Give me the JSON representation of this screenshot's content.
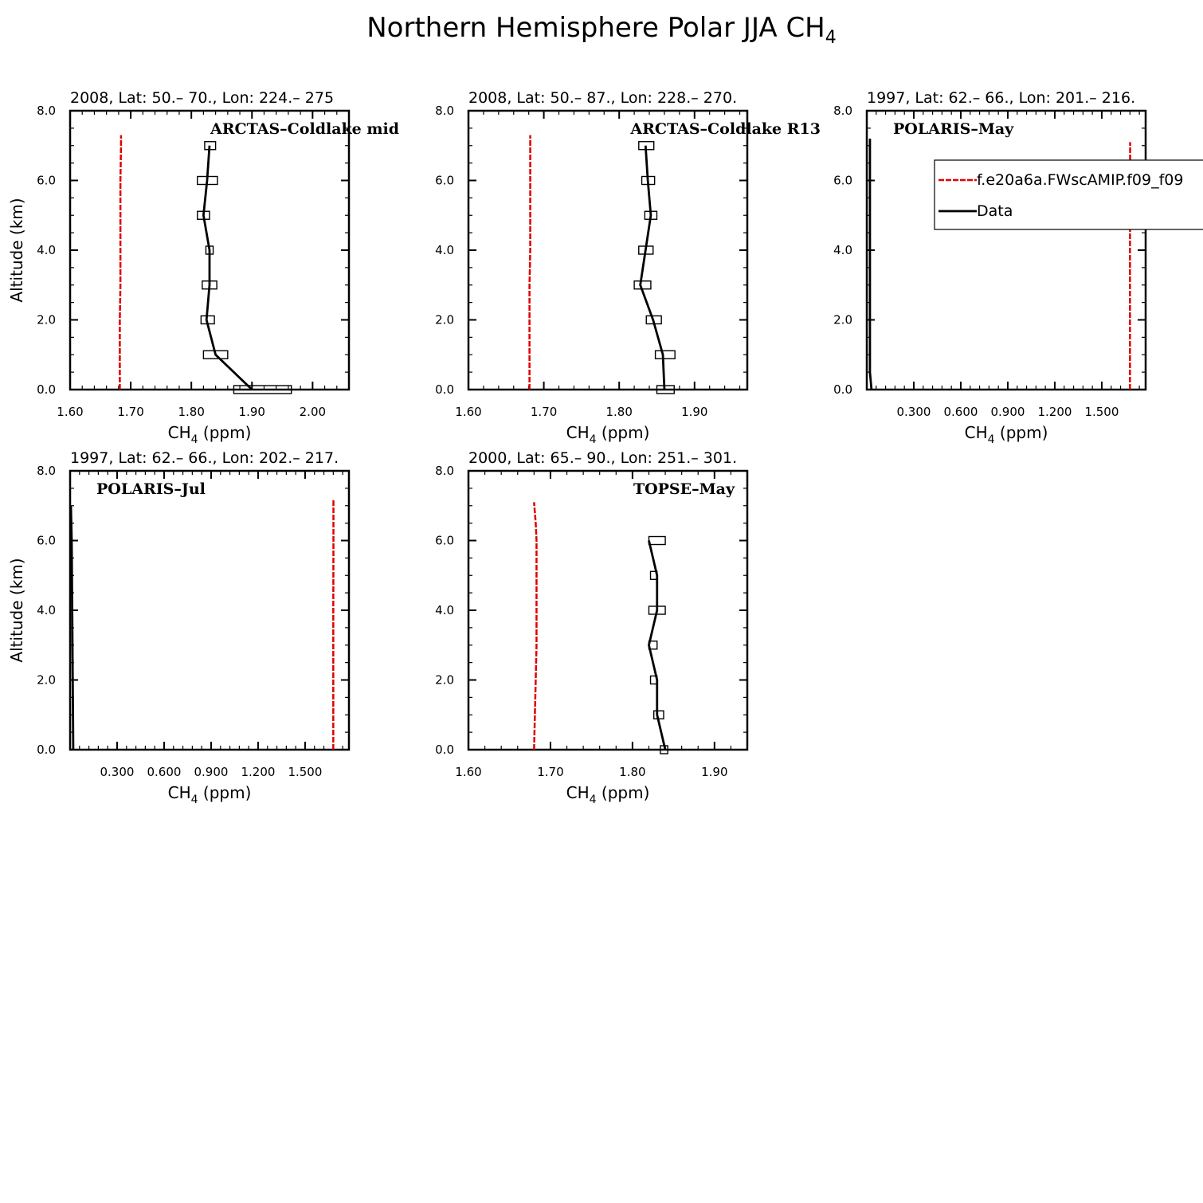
{
  "figure": {
    "title_main": "Northern Hemisphere Polar JJA CH",
    "title_sub": "4"
  },
  "legend": {
    "model_label": "f.e20a6a.FWscAMIP.f09_f09",
    "data_label": "Data",
    "model_color": "#e00000",
    "data_color": "#000000"
  },
  "chart_data": [
    {
      "type": "line",
      "title": "2008, Lat:  50.– 70., Lon: 224.– 275",
      "campaign": "ARCTAS–Coldlake mid",
      "xlabel_main": "CH",
      "xlabel_sub": "4",
      "xlabel_rest": " (ppm)",
      "ylabel": "Altitude (km)",
      "xlim": [
        1.6,
        2.06
      ],
      "ylim": [
        0,
        8
      ],
      "xticks": [
        1.6,
        1.7,
        1.8,
        1.9,
        2.0
      ],
      "xtick_labels": [
        "1.60",
        "1.70",
        "1.80",
        "1.90",
        "2.00"
      ],
      "yticks": [
        0,
        2,
        4,
        6,
        8
      ],
      "ytick_labels": [
        "0.0",
        "2.0",
        "4.0",
        "6.0",
        "8.0"
      ],
      "model": {
        "alt": [
          0,
          1,
          2,
          3,
          4,
          5,
          6,
          7,
          7.3
        ],
        "ch4": [
          1.682,
          1.682,
          1.682,
          1.683,
          1.683,
          1.683,
          1.683,
          1.684,
          1.684
        ]
      },
      "data": {
        "alt": [
          0,
          1,
          2,
          3,
          4,
          5,
          6,
          7
        ],
        "ch4": [
          1.9,
          1.84,
          1.825,
          1.83,
          1.83,
          1.82,
          1.826,
          1.83
        ],
        "lo": [
          1.87,
          1.82,
          1.816,
          1.818,
          1.824,
          1.81,
          1.81,
          1.822
        ],
        "hi": [
          1.965,
          1.86,
          1.838,
          1.842,
          1.836,
          1.83,
          1.843,
          1.84
        ]
      }
    },
    {
      "type": "line",
      "title": "2008, Lat:  50.– 87., Lon: 228.– 270.",
      "campaign": "ARCTAS–Coldlake R13",
      "xlabel_main": "CH",
      "xlabel_sub": "4",
      "xlabel_rest": " (ppm)",
      "ylabel": "",
      "xlim": [
        1.6,
        1.97
      ],
      "ylim": [
        0,
        8
      ],
      "xticks": [
        1.6,
        1.7,
        1.8,
        1.9
      ],
      "xtick_labels": [
        "1.60",
        "1.70",
        "1.80",
        "1.90"
      ],
      "yticks": [
        0,
        2,
        4,
        6,
        8
      ],
      "ytick_labels": [
        "0.0",
        "2.0",
        "4.0",
        "6.0",
        "8.0"
      ],
      "model": {
        "alt": [
          0,
          1,
          2,
          3,
          4,
          5,
          6,
          7,
          7.3
        ],
        "ch4": [
          1.681,
          1.681,
          1.681,
          1.681,
          1.682,
          1.682,
          1.682,
          1.682,
          1.682
        ]
      },
      "data": {
        "alt": [
          0,
          1,
          2,
          3,
          4,
          5,
          6,
          7
        ],
        "ch4": [
          1.86,
          1.858,
          1.845,
          1.828,
          1.835,
          1.842,
          1.838,
          1.835
        ],
        "lo": [
          1.85,
          1.848,
          1.836,
          1.82,
          1.826,
          1.834,
          1.83,
          1.826
        ],
        "hi": [
          1.873,
          1.874,
          1.856,
          1.842,
          1.845,
          1.85,
          1.847,
          1.846
        ]
      }
    },
    {
      "type": "line",
      "title": "1997, Lat: 62.– 66., Lon: 201.– 216.",
      "campaign": "POLARIS–May",
      "xlabel_main": "CH",
      "xlabel_sub": "4",
      "xlabel_rest": " (ppm)",
      "ylabel": "",
      "xlim": [
        0,
        1.78
      ],
      "ylim": [
        0,
        8
      ],
      "xticks": [
        0.3,
        0.6,
        0.9,
        1.2,
        1.5
      ],
      "xtick_labels": [
        "0.300",
        "0.600",
        "0.900",
        "1.200",
        "1.500"
      ],
      "yticks": [
        0,
        2,
        4,
        6,
        8
      ],
      "ytick_labels": [
        "0.0",
        "2.0",
        "4.0",
        "6.0",
        "8.0"
      ],
      "model": {
        "alt": [
          0,
          2,
          4,
          6,
          7.1
        ],
        "ch4": [
          1.68,
          1.68,
          1.68,
          1.681,
          1.681
        ]
      },
      "data": {
        "alt": [
          0,
          0.5,
          7.0,
          7.2
        ],
        "ch4": [
          0.03,
          0.02,
          0.02,
          0.02
        ],
        "lo": [],
        "hi": []
      }
    },
    {
      "type": "line",
      "title": "1997, Lat: 62.– 66., Lon: 202.– 217.",
      "campaign": "POLARIS–Jul",
      "xlabel_main": "CH",
      "xlabel_sub": "4",
      "xlabel_rest": " (ppm)",
      "ylabel": "Altitude (km)",
      "xlim": [
        0,
        1.78
      ],
      "ylim": [
        0,
        8
      ],
      "xticks": [
        0.3,
        0.6,
        0.9,
        1.2,
        1.5
      ],
      "xtick_labels": [
        "0.300",
        "0.600",
        "0.900",
        "1.200",
        "1.500"
      ],
      "yticks": [
        0,
        2,
        4,
        6,
        8
      ],
      "ytick_labels": [
        "0.0",
        "2.0",
        "4.0",
        "6.0",
        "8.0"
      ],
      "model": {
        "alt": [
          0,
          2,
          4,
          6,
          7.2
        ],
        "ch4": [
          1.68,
          1.68,
          1.68,
          1.681,
          1.681
        ]
      },
      "data": {
        "alt": [
          0,
          6.0,
          7.0
        ],
        "ch4": [
          0.02,
          0.01,
          0.005
        ],
        "lo": [],
        "hi": []
      }
    },
    {
      "type": "line",
      "title": "2000, Lat: 65.– 90., Lon: 251.– 301.",
      "campaign": "TOPSE–May",
      "xlabel_main": "CH",
      "xlabel_sub": "4",
      "xlabel_rest": " (ppm)",
      "ylabel": "",
      "xlim": [
        1.6,
        1.94
      ],
      "ylim": [
        0,
        8
      ],
      "xticks": [
        1.6,
        1.7,
        1.8,
        1.9
      ],
      "xtick_labels": [
        "1.60",
        "1.70",
        "1.80",
        "1.90"
      ],
      "yticks": [
        0,
        2,
        4,
        6,
        8
      ],
      "ytick_labels": [
        "0.0",
        "2.0",
        "4.0",
        "6.0",
        "8.0"
      ],
      "model": {
        "alt": [
          0,
          1,
          2,
          3,
          4,
          5,
          6,
          6.5,
          7.1
        ],
        "ch4": [
          1.68,
          1.681,
          1.682,
          1.683,
          1.683,
          1.683,
          1.683,
          1.682,
          1.68
        ]
      },
      "data": {
        "alt": [
          0,
          1,
          2,
          3,
          4,
          5,
          6
        ],
        "ch4": [
          1.84,
          1.83,
          1.83,
          1.82,
          1.83,
          1.83,
          1.82
        ],
        "lo": [
          1.834,
          1.826,
          1.822,
          1.82,
          1.82,
          1.822,
          1.82
        ],
        "hi": [
          1.843,
          1.838,
          1.83,
          1.83,
          1.84,
          1.83,
          1.84
        ]
      }
    }
  ]
}
